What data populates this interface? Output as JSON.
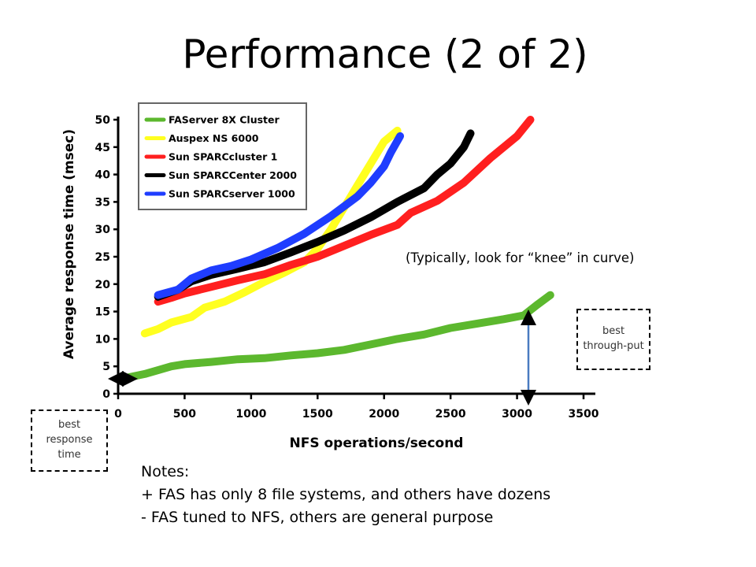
{
  "slide": {
    "title": "Performance (2 of 2)",
    "knee_note": "(Typically, look for “knee” in curve)",
    "best_throughput_label": "best through-put",
    "best_response_label": "best response time",
    "notes": {
      "heading": "Notes:",
      "lines": [
        "+ FAS has only 8 file systems, and others have dozens",
        "- FAS tuned to NFS, others are general purpose"
      ]
    }
  },
  "colors": {
    "arrow": "#4a7bc0"
  },
  "chart_data": {
    "type": "line",
    "title": "",
    "xlabel": "NFS operations/second",
    "ylabel": "Average response time (msec)",
    "xlim": [
      0,
      3500
    ],
    "ylim": [
      0,
      50
    ],
    "xticks": [
      0,
      500,
      1000,
      1500,
      2000,
      2500,
      3000,
      3500
    ],
    "yticks": [
      0,
      5,
      10,
      15,
      20,
      25,
      30,
      35,
      40,
      45,
      50
    ],
    "grid": false,
    "legend_position": "top-left",
    "series": [
      {
        "name": "FAServer 8X Cluster",
        "color": "#5cb82e",
        "points": [
          [
            80,
            3
          ],
          [
            200,
            3.6
          ],
          [
            300,
            4.3
          ],
          [
            400,
            5
          ],
          [
            500,
            5.4
          ],
          [
            700,
            5.8
          ],
          [
            900,
            6.3
          ],
          [
            1100,
            6.5
          ],
          [
            1300,
            7
          ],
          [
            1500,
            7.4
          ],
          [
            1700,
            8
          ],
          [
            1900,
            9
          ],
          [
            2100,
            10
          ],
          [
            2300,
            10.8
          ],
          [
            2500,
            12
          ],
          [
            2700,
            12.8
          ],
          [
            2900,
            13.6
          ],
          [
            3050,
            14.3
          ],
          [
            3150,
            16.2
          ],
          [
            3250,
            18
          ]
        ]
      },
      {
        "name": "Auspex NS 6000",
        "color": "#ffff20",
        "points": [
          [
            200,
            11
          ],
          [
            300,
            11.8
          ],
          [
            400,
            13
          ],
          [
            550,
            14
          ],
          [
            650,
            15.7
          ],
          [
            800,
            16.8
          ],
          [
            950,
            18.5
          ],
          [
            1100,
            20.4
          ],
          [
            1250,
            22.1
          ],
          [
            1400,
            24
          ],
          [
            1500,
            26.5
          ],
          [
            1600,
            30
          ],
          [
            1700,
            34
          ],
          [
            1800,
            38
          ],
          [
            1900,
            42
          ],
          [
            2000,
            46
          ],
          [
            2100,
            48
          ]
        ]
      },
      {
        "name": "Sun SPARCcluster 1",
        "color": "#ff1f1f",
        "points": [
          [
            300,
            16.8
          ],
          [
            400,
            17.5
          ],
          [
            500,
            18.3
          ],
          [
            700,
            19.5
          ],
          [
            900,
            20.7
          ],
          [
            1100,
            21.8
          ],
          [
            1300,
            23.5
          ],
          [
            1500,
            25
          ],
          [
            1700,
            27
          ],
          [
            1900,
            29
          ],
          [
            2100,
            30.8
          ],
          [
            2200,
            33
          ],
          [
            2400,
            35.2
          ],
          [
            2600,
            38.5
          ],
          [
            2800,
            43
          ],
          [
            3000,
            47
          ],
          [
            3100,
            50
          ]
        ]
      },
      {
        "name": "Sun SPARCCenter 2000",
        "color": "#000000",
        "points": [
          [
            300,
            17.7
          ],
          [
            450,
            19
          ],
          [
            550,
            20.5
          ],
          [
            700,
            21.7
          ],
          [
            900,
            22.8
          ],
          [
            1100,
            24
          ],
          [
            1300,
            25.8
          ],
          [
            1500,
            27.7
          ],
          [
            1700,
            29.8
          ],
          [
            1900,
            32.2
          ],
          [
            2100,
            35
          ],
          [
            2300,
            37.5
          ],
          [
            2400,
            40
          ],
          [
            2500,
            42
          ],
          [
            2600,
            45
          ],
          [
            2650,
            47.5
          ]
        ]
      },
      {
        "name": "Sun SPARCserver 1000",
        "color": "#1f3dff",
        "points": [
          [
            300,
            18
          ],
          [
            450,
            19
          ],
          [
            550,
            21
          ],
          [
            700,
            22.5
          ],
          [
            850,
            23.3
          ],
          [
            1000,
            24.5
          ],
          [
            1200,
            26.6
          ],
          [
            1400,
            29.2
          ],
          [
            1600,
            32.4
          ],
          [
            1800,
            36
          ],
          [
            1900,
            38.5
          ],
          [
            2000,
            41.5
          ],
          [
            2050,
            44
          ],
          [
            2120,
            47
          ]
        ]
      }
    ]
  }
}
